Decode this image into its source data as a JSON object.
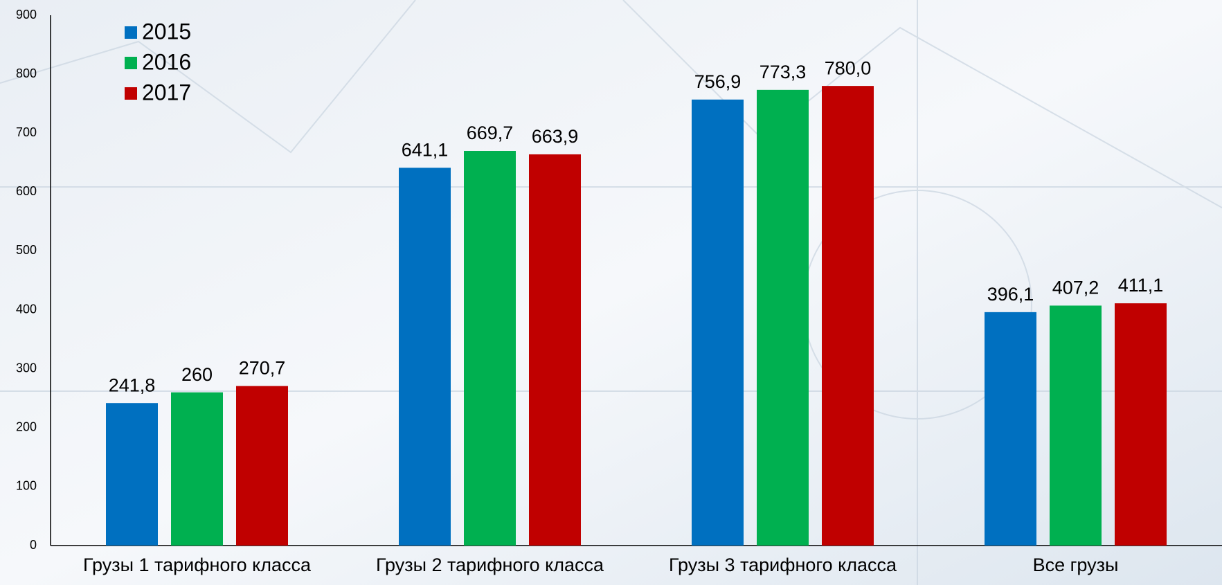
{
  "chart_data": {
    "type": "bar",
    "categories": [
      "Грузы 1 тарифного класса",
      "Грузы 2 тарифного класса",
      "Грузы 3 тарифного класса",
      "Все грузы"
    ],
    "series": [
      {
        "name": "2015",
        "color": "#0070c0",
        "values": [
          241.8,
          641.1,
          756.9,
          396.1
        ],
        "value_labels": [
          "241,8",
          "641,1",
          "756,9",
          "396,1"
        ]
      },
      {
        "name": "2016",
        "color": "#00b050",
        "values": [
          260,
          669.7,
          773.3,
          407.2
        ],
        "value_labels": [
          "260",
          "669,7",
          "773,3",
          "407,2"
        ]
      },
      {
        "name": "2017",
        "color": "#c00000",
        "values": [
          270.7,
          663.9,
          780.0,
          411.1
        ],
        "value_labels": [
          "270,7",
          "663,9",
          "780,0",
          "411,1"
        ]
      }
    ],
    "ylim": [
      0,
      900
    ],
    "yticks": [
      0,
      100,
      200,
      300,
      400,
      500,
      600,
      700,
      800,
      900
    ],
    "grid": false,
    "legend": "top-left"
  }
}
